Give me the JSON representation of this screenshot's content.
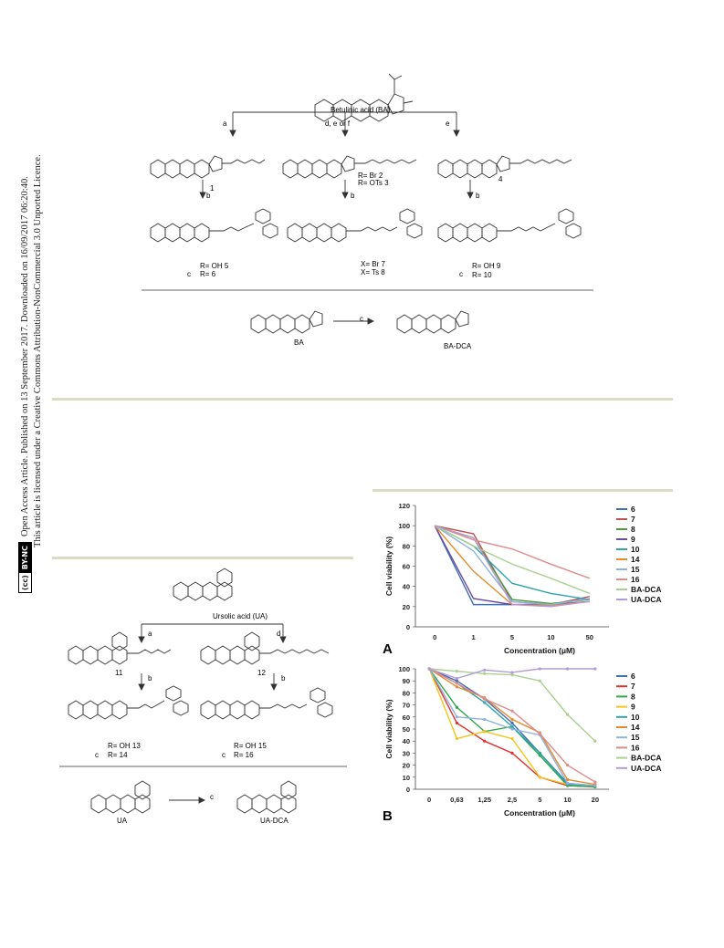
{
  "sidebar": {
    "line1": "Open Access Article. Published on 13 September 2017. Downloaded on 16/09/2017 06:20:40.",
    "line2": "This article is licensed under a Creative Commons Attribution-NonCommercial 3.0 Unported Licence.",
    "badge_cc": "(cc)",
    "badge_bync": "BY-NC"
  },
  "scheme1": {
    "start_label": "Betulinic acid (BA)",
    "step_a": "a",
    "step_def": "d, e or f",
    "step_e": "e",
    "step_b1": "b",
    "step_b2": "b",
    "step_b3": "b",
    "cmpd1": "1",
    "cmpd23_line1": "R= Br   2",
    "cmpd23_line2": "R= OTs  3",
    "cmpd4": "4",
    "cmpd56_c": "c",
    "cmpd56_line1": "R= OH      5",
    "cmpd56_line2": "R=            6",
    "cmpd78_line1": "X= Br   7",
    "cmpd78_line2": "X= Ts   8",
    "cmpd910_c": "c",
    "cmpd910_line1": "R= OH       9",
    "cmpd910_line2": "R=             10",
    "ba_label": "BA",
    "ba_dca_label": "BA-DCA",
    "step_c_bottom": "c"
  },
  "scheme2": {
    "start_label": "Ursolic acid (UA)",
    "step_a": "a",
    "step_d": "d",
    "step_b1": "b",
    "step_b2": "b",
    "cmpd11": "11",
    "cmpd12": "12",
    "cmpd1314_c": "c",
    "cmpd1314_line1": "R= OH        13",
    "cmpd1314_line2": "R=             14",
    "cmpd1516_c": "c",
    "cmpd1516_line1": "R= OH       15",
    "cmpd1516_line2": "R=            16",
    "ua_label": "UA",
    "ua_dca_label": "UA-DCA",
    "step_c_bottom": "c"
  },
  "colors": {
    "rule": "#dcdcc4",
    "s6": "#3f6fb5",
    "s7": "#c0504d",
    "s8": "#4f9a3f",
    "s9": "#6a4c9c",
    "s10": "#2fa3b0",
    "s14": "#e68a2e",
    "s15": "#8fb2de",
    "s16": "#e08a8a",
    "sBADCA": "#a9d08e",
    "sUADCA": "#b29bd6",
    "s7B": "#e0312e",
    "s8B": "#2ea84a",
    "s9B": "#f2c51a"
  },
  "chart_data": [
    {
      "type": "line",
      "panel": "A",
      "ylabel": "Cell viability (%)",
      "xlabel": "Concentration (μM)",
      "categories": [
        "0",
        "1",
        "5",
        "10",
        "50"
      ],
      "ylim": [
        0,
        120
      ],
      "yticks": [
        0,
        20,
        40,
        60,
        80,
        100,
        120
      ],
      "series": [
        {
          "name": "6",
          "color_key": "s6",
          "values": [
            100,
            22,
            22,
            22,
            28
          ]
        },
        {
          "name": "7",
          "color_key": "s7",
          "values": [
            100,
            92,
            25,
            22,
            30
          ]
        },
        {
          "name": "8",
          "color_key": "s8",
          "values": [
            100,
            88,
            27,
            23,
            27
          ]
        },
        {
          "name": "9",
          "color_key": "s9",
          "values": [
            100,
            28,
            22,
            22,
            25
          ]
        },
        {
          "name": "10",
          "color_key": "s10",
          "values": [
            100,
            80,
            43,
            33,
            27
          ]
        },
        {
          "name": "14",
          "color_key": "s14",
          "values": [
            100,
            55,
            22,
            21,
            25
          ]
        },
        {
          "name": "15",
          "color_key": "s15",
          "values": [
            100,
            75,
            25,
            22,
            28
          ]
        },
        {
          "name": "16",
          "color_key": "s16",
          "values": [
            100,
            86,
            77,
            62,
            48
          ]
        },
        {
          "name": "BA-DCA",
          "color_key": "sBADCA",
          "values": [
            100,
            80,
            62,
            48,
            33
          ]
        },
        {
          "name": "UA-DCA",
          "color_key": "sUADCA",
          "values": [
            100,
            88,
            22,
            20,
            25
          ]
        }
      ],
      "legend_position": "right"
    },
    {
      "type": "line",
      "panel": "B",
      "ylabel": "Cell viability (%)",
      "xlabel": "Concentration (μM)",
      "categories": [
        "0",
        "0,63",
        "1,25",
        "2,5",
        "5",
        "10",
        "20"
      ],
      "ylim": [
        0,
        100
      ],
      "yticks": [
        0,
        10,
        20,
        30,
        40,
        50,
        60,
        70,
        80,
        90,
        100
      ],
      "series": [
        {
          "name": "6",
          "color_key": "s6",
          "values": [
            100,
            90,
            75,
            55,
            30,
            5,
            3
          ]
        },
        {
          "name": "7",
          "color_key": "s7B",
          "values": [
            100,
            55,
            40,
            30,
            10,
            3,
            2
          ]
        },
        {
          "name": "8",
          "color_key": "s8B",
          "values": [
            100,
            68,
            48,
            52,
            28,
            3,
            2
          ]
        },
        {
          "name": "9",
          "color_key": "s9B",
          "values": [
            100,
            42,
            48,
            42,
            10,
            4,
            3
          ]
        },
        {
          "name": "10",
          "color_key": "s10",
          "values": [
            100,
            88,
            72,
            52,
            30,
            4,
            3
          ]
        },
        {
          "name": "14",
          "color_key": "s14",
          "values": [
            100,
            85,
            76,
            58,
            47,
            8,
            4
          ]
        },
        {
          "name": "15",
          "color_key": "s15",
          "values": [
            100,
            60,
            58,
            50,
            45,
            5,
            3
          ]
        },
        {
          "name": "16",
          "color_key": "s16",
          "values": [
            100,
            88,
            75,
            65,
            46,
            20,
            6
          ]
        },
        {
          "name": "BA-DCA",
          "color_key": "sBADCA",
          "values": [
            100,
            98,
            96,
            95,
            90,
            62,
            40
          ]
        },
        {
          "name": "UA-DCA",
          "color_key": "sUADCA",
          "values": [
            100,
            92,
            99,
            97,
            100,
            100,
            100
          ]
        }
      ],
      "legend_position": "right"
    }
  ],
  "chartA_letter": "A",
  "chartB_letter": "B"
}
